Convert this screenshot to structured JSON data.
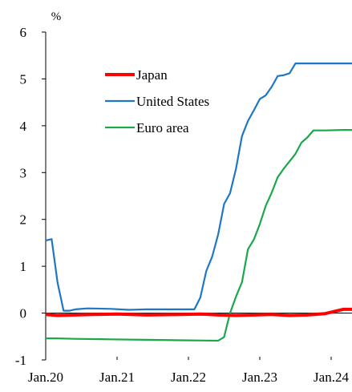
{
  "chart_data": {
    "type": "line",
    "title": "",
    "xlabel": "",
    "ylabel": "%",
    "ylim": [
      -1,
      6
    ],
    "yticks": [
      "-1",
      "0",
      "1",
      "2",
      "3",
      "4",
      "5",
      "6"
    ],
    "xlim": [
      "2020-01",
      "2024-08"
    ],
    "xticks": [
      {
        "label": "Jan.20",
        "date": "2020-01"
      },
      {
        "label": "Jan.21",
        "date": "2021-01"
      },
      {
        "label": "Jan.22",
        "date": "2022-01"
      },
      {
        "label": "Jan.23",
        "date": "2023-01"
      },
      {
        "label": "Jan.24",
        "date": "2024-01"
      }
    ],
    "grid": false,
    "legend_position": "upper-left",
    "series": [
      {
        "name": "Japan",
        "color": "#ff0000",
        "points": [
          [
            "2020-01",
            -0.03
          ],
          [
            "2020-03",
            -0.05
          ],
          [
            "2020-06",
            -0.04
          ],
          [
            "2020-09",
            -0.03
          ],
          [
            "2021-01",
            -0.02
          ],
          [
            "2021-06",
            -0.04
          ],
          [
            "2021-12",
            -0.03
          ],
          [
            "2022-03",
            -0.02
          ],
          [
            "2022-06",
            -0.04
          ],
          [
            "2022-09",
            -0.05
          ],
          [
            "2022-12",
            -0.04
          ],
          [
            "2023-03",
            -0.03
          ],
          [
            "2023-06",
            -0.05
          ],
          [
            "2023-09",
            -0.04
          ],
          [
            "2023-12",
            -0.01
          ],
          [
            "2024-03",
            0.08
          ],
          [
            "2024-05",
            0.08
          ],
          [
            "2024-07",
            0.08
          ],
          [
            "2024-08",
            0.18
          ]
        ]
      },
      {
        "name": "United States",
        "color": "#1f77c4",
        "points": [
          [
            "2020-01",
            1.55
          ],
          [
            "2020-02",
            1.58
          ],
          [
            "2020-03",
            0.65
          ],
          [
            "2020-04",
            0.05
          ],
          [
            "2020-05",
            0.05
          ],
          [
            "2020-06",
            0.08
          ],
          [
            "2020-08",
            0.1
          ],
          [
            "2020-12",
            0.09
          ],
          [
            "2021-03",
            0.07
          ],
          [
            "2021-06",
            0.08
          ],
          [
            "2021-09",
            0.08
          ],
          [
            "2022-01",
            0.08
          ],
          [
            "2022-02",
            0.08
          ],
          [
            "2022-03",
            0.33
          ],
          [
            "2022-04",
            0.9
          ],
          [
            "2022-05",
            1.21
          ],
          [
            "2022-06",
            1.68
          ],
          [
            "2022-07",
            2.33
          ],
          [
            "2022-08",
            2.56
          ],
          [
            "2022-09",
            3.08
          ],
          [
            "2022-10",
            3.78
          ],
          [
            "2022-11",
            4.1
          ],
          [
            "2022-12",
            4.33
          ],
          [
            "2023-01",
            4.57
          ],
          [
            "2023-02",
            4.65
          ],
          [
            "2023-03",
            4.83
          ],
          [
            "2023-04",
            5.06
          ],
          [
            "2023-05",
            5.08
          ],
          [
            "2023-06",
            5.12
          ],
          [
            "2023-07",
            5.33
          ],
          [
            "2023-12",
            5.33
          ],
          [
            "2024-08",
            5.33
          ]
        ]
      },
      {
        "name": "Euro area",
        "color": "#1aa84a",
        "points": [
          [
            "2020-01",
            -0.54
          ],
          [
            "2020-03",
            -0.54
          ],
          [
            "2020-06",
            -0.55
          ],
          [
            "2020-12",
            -0.56
          ],
          [
            "2021-06",
            -0.57
          ],
          [
            "2021-12",
            -0.58
          ],
          [
            "2022-06",
            -0.59
          ],
          [
            "2022-07",
            -0.51
          ],
          [
            "2022-08",
            0.0
          ],
          [
            "2022-09",
            0.35
          ],
          [
            "2022-10",
            0.66
          ],
          [
            "2022-11",
            1.36
          ],
          [
            "2022-12",
            1.57
          ],
          [
            "2023-01",
            1.9
          ],
          [
            "2023-02",
            2.29
          ],
          [
            "2023-03",
            2.57
          ],
          [
            "2023-04",
            2.9
          ],
          [
            "2023-05",
            3.08
          ],
          [
            "2023-06",
            3.24
          ],
          [
            "2023-07",
            3.4
          ],
          [
            "2023-08",
            3.64
          ],
          [
            "2023-09",
            3.75
          ],
          [
            "2023-10",
            3.9
          ],
          [
            "2023-12",
            3.9
          ],
          [
            "2024-03",
            3.91
          ],
          [
            "2024-05",
            3.91
          ],
          [
            "2024-06",
            3.75
          ],
          [
            "2024-07",
            3.66
          ],
          [
            "2024-08",
            3.63
          ]
        ]
      }
    ]
  }
}
